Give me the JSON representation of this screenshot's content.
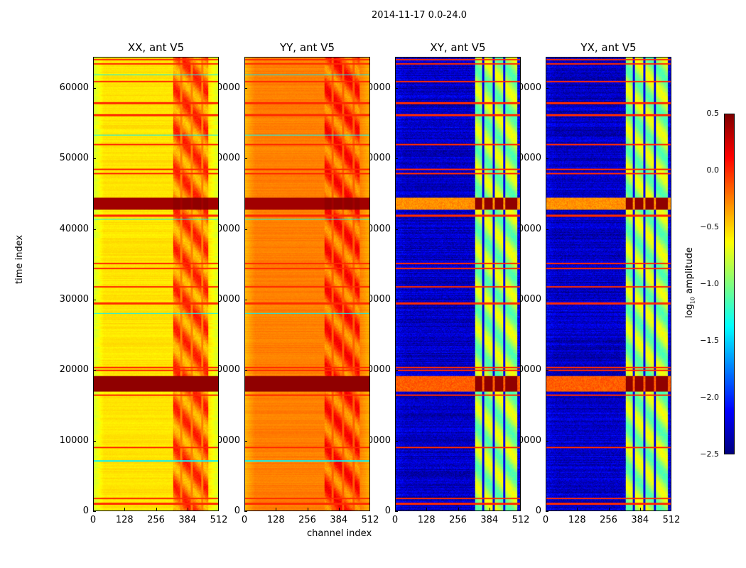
{
  "chart_data": {
    "type": "heatmap",
    "title": "2014-11-17 0.0-24.0",
    "xlabel": "channel index",
    "ylabel": "time index",
    "xlim": [
      0,
      512
    ],
    "ylim": [
      0,
      64450
    ],
    "xticks": [
      "0",
      "128",
      "256",
      "384",
      "512"
    ],
    "xtick_values": [
      0,
      128,
      256,
      384,
      512
    ],
    "yticks": [
      "0",
      "10000",
      "20000",
      "30000",
      "40000",
      "50000",
      "60000"
    ],
    "ytick_values": [
      0,
      10000,
      20000,
      30000,
      40000,
      50000,
      60000
    ],
    "colormap": "jet",
    "colorbar": {
      "label": "log10 amplitude",
      "label_main": "log",
      "label_sub": "10",
      "label_rest": " amplitude",
      "range": [
        -2.5,
        0.5
      ],
      "ticks": [
        "0.5",
        "0.0",
        "−0.5",
        "−1.0",
        "−1.5",
        "−2.0",
        "−2.5"
      ],
      "tick_values": [
        0.5,
        0.0,
        -0.5,
        -1.0,
        -1.5,
        -2.0,
        -2.5
      ]
    },
    "panels": [
      {
        "title": "XX, ant V5",
        "base": -0.55,
        "edge": -0.75,
        "rfi_channels": [
          325,
          470
        ],
        "rfi_level": -0.2,
        "cross": false
      },
      {
        "title": "YY, ant V5",
        "base": -0.25,
        "edge": -0.4,
        "rfi_channels": [
          325,
          470
        ],
        "rfi_level": -0.1,
        "cross": false
      },
      {
        "title": "XY, ant V5",
        "base": -2.3,
        "edge": -2.2,
        "rfi_channels": [
          324,
          500
        ],
        "rfi_level": -0.9,
        "cross": true
      },
      {
        "title": "YX, ant V5",
        "base": -2.3,
        "edge": -2.2,
        "rfi_channels": [
          324,
          500
        ],
        "rfi_level": -0.9,
        "cross": true
      }
    ],
    "rfi_gap_channels": [
      359,
      402,
      446
    ],
    "strong_bands": [
      {
        "time": [
          17000,
          19200
        ],
        "auto_level": 0.45,
        "cross_level": -0.15
      },
      {
        "time": [
          42800,
          44600
        ],
        "auto_level": 0.4,
        "cross_level": -0.3
      }
    ],
    "flag_lines": [
      1000,
      1800,
      9000,
      16500,
      20000,
      20400,
      29500,
      31900,
      34500,
      35200,
      42000,
      48000,
      48600,
      52100,
      56300,
      58000,
      61100,
      63600,
      64200
    ],
    "flag_level": 0.0,
    "cyan_lines": [
      7100,
      28100,
      41500,
      53500,
      62000
    ]
  }
}
